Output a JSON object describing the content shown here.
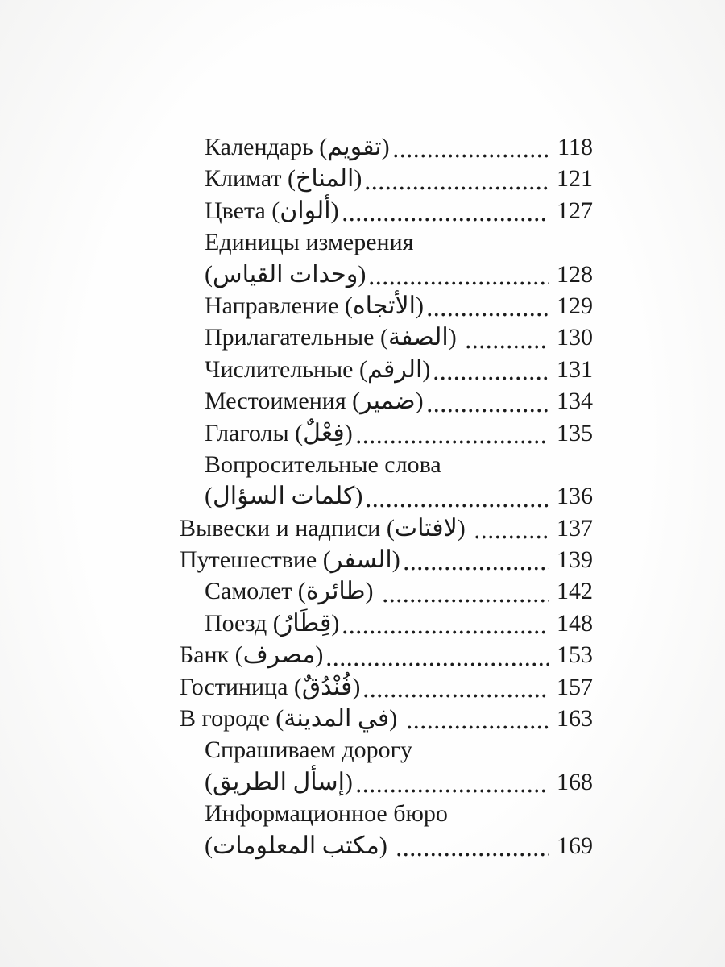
{
  "colors": {
    "text": "#1a1a1a",
    "paper": "#fdfdfd"
  },
  "toc": {
    "lines": [
      {
        "indent": 2,
        "text": "Календарь (تقويم)",
        "page": "118"
      },
      {
        "indent": 2,
        "text": "Климат (المناخ)",
        "page": "121"
      },
      {
        "indent": 2,
        "text": "Цвета (ألوان)",
        "page": "127"
      },
      {
        "indent": 2,
        "text": "Единицы измерения",
        "page": ""
      },
      {
        "indent": 2,
        "text": "(وحدات القياس)",
        "page": "128"
      },
      {
        "indent": 2,
        "text": "Направление (الأتجاه)",
        "page": "129"
      },
      {
        "indent": 2,
        "text": "Прилагательные (الصفة) ",
        "page": "130"
      },
      {
        "indent": 2,
        "text": "Числительные (الرقم)",
        "page": "131"
      },
      {
        "indent": 2,
        "text": "Местоимения (ضمير)",
        "page": "134"
      },
      {
        "indent": 2,
        "text": "Глаголы (فِعْلٌ)",
        "page": "135"
      },
      {
        "indent": 2,
        "text": "Вопросительные слова",
        "page": ""
      },
      {
        "indent": 2,
        "text": "(كلمات السؤال)",
        "page": "136"
      },
      {
        "indent": 1,
        "text": "Вывески и надписи (لافتات) ",
        "page": "137"
      },
      {
        "indent": 1,
        "text": "Путешествие (السفر)",
        "page": "139"
      },
      {
        "indent": 2,
        "text": "Самолет (طائرة) ",
        "page": "142"
      },
      {
        "indent": 2,
        "text": "Поезд (قِطَارُ)",
        "page": "148"
      },
      {
        "indent": 1,
        "text": "Банк (مصرف)",
        "page": "153"
      },
      {
        "indent": 1,
        "text": "Гостиница (فُنْدُقٌ)",
        "page": "157"
      },
      {
        "indent": 1,
        "text": "В городе (في المدينة) ",
        "page": "163"
      },
      {
        "indent": 2,
        "text": "Спрашиваем дорогу",
        "page": ""
      },
      {
        "indent": 2,
        "text": "(إسأل الطريق)",
        "page": "168"
      },
      {
        "indent": 2,
        "text": "Информационное бюро",
        "page": ""
      },
      {
        "indent": 2,
        "text": "(مكتب المعلومات) ",
        "page": "169"
      }
    ]
  }
}
